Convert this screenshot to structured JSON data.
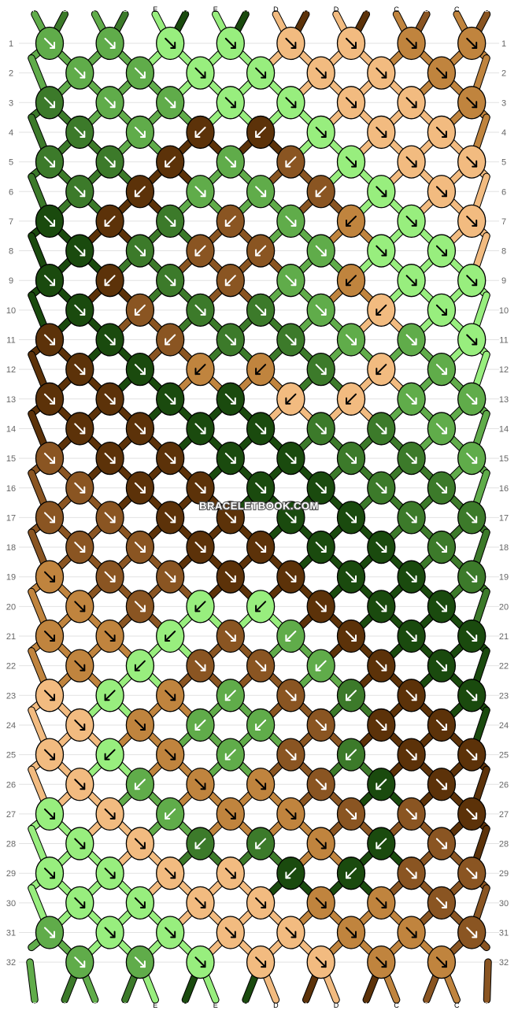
{
  "watermark": "BRACELETBOOK.COM",
  "colors": {
    "E": "#98ee7e",
    "F": "#60ac4a",
    "G": "#3c7a2a",
    "H": "#1a4a0e",
    "D": "#f2bb80",
    "C": "#c0843e",
    "B": "#8a5522",
    "A": "#5c3209"
  },
  "strands_top": [
    "F",
    "G",
    "F",
    "G",
    "E",
    "H",
    "E",
    "H",
    "D",
    "A",
    "D",
    "A",
    "C",
    "B",
    "C",
    "B"
  ],
  "strands_bottom": [
    "F",
    "G",
    "F",
    "G",
    "E",
    "H",
    "E",
    "H",
    "D",
    "A",
    "D",
    "A",
    "C",
    "B",
    "C",
    "B"
  ],
  "row_labels": [
    "1",
    "2",
    "3",
    "4",
    "5",
    "6",
    "7",
    "8",
    "9",
    "10",
    "11",
    "12",
    "13",
    "14",
    "15",
    "16",
    "17",
    "18",
    "19",
    "20",
    "21",
    "22",
    "23",
    "24",
    "25",
    "26",
    "27",
    "28",
    "29",
    "30",
    "31",
    "32"
  ],
  "knots": [
    [
      {
        "c": "F",
        "d": "f"
      },
      {
        "c": "F",
        "d": "f"
      },
      {
        "c": "E",
        "d": "f"
      },
      {
        "c": "E",
        "d": "f"
      },
      {
        "c": "D",
        "d": "f"
      },
      {
        "c": "D",
        "d": "f"
      },
      {
        "c": "C",
        "d": "f"
      },
      {
        "c": "C",
        "d": "f"
      }
    ],
    [
      {
        "c": "F",
        "d": "f"
      },
      {
        "c": "F",
        "d": "f"
      },
      {
        "c": "E",
        "d": "f"
      },
      {
        "c": "E",
        "d": "f"
      },
      {
        "c": "D",
        "d": "f"
      },
      {
        "c": "D",
        "d": "f"
      },
      {
        "c": "C",
        "d": "f"
      }
    ],
    [
      {
        "c": "G",
        "d": "f"
      },
      {
        "c": "F",
        "d": "f"
      },
      {
        "c": "F",
        "d": "f"
      },
      {
        "c": "E",
        "d": "f"
      },
      {
        "c": "E",
        "d": "f"
      },
      {
        "c": "D",
        "d": "f"
      },
      {
        "c": "D",
        "d": "f"
      },
      {
        "c": "C",
        "d": "f"
      }
    ],
    [
      {
        "c": "G",
        "d": "f"
      },
      {
        "c": "F",
        "d": "f"
      },
      {
        "c": "A",
        "d": "b"
      },
      {
        "c": "A",
        "d": "b"
      },
      {
        "c": "E",
        "d": "f"
      },
      {
        "c": "D",
        "d": "f"
      },
      {
        "c": "D",
        "d": "f"
      }
    ],
    [
      {
        "c": "G",
        "d": "f"
      },
      {
        "c": "G",
        "d": "f"
      },
      {
        "c": "A",
        "d": "b"
      },
      {
        "c": "F",
        "d": "f"
      },
      {
        "c": "B",
        "d": "b"
      },
      {
        "c": "E",
        "d": "f"
      },
      {
        "c": "D",
        "d": "f"
      },
      {
        "c": "D",
        "d": "f"
      }
    ],
    [
      {
        "c": "G",
        "d": "f"
      },
      {
        "c": "A",
        "d": "b"
      },
      {
        "c": "F",
        "d": "f"
      },
      {
        "c": "F",
        "d": "f"
      },
      {
        "c": "B",
        "d": "b"
      },
      {
        "c": "E",
        "d": "f"
      },
      {
        "c": "D",
        "d": "f"
      }
    ],
    [
      {
        "c": "H",
        "d": "f"
      },
      {
        "c": "A",
        "d": "b"
      },
      {
        "c": "G",
        "d": "f"
      },
      {
        "c": "B",
        "d": "b"
      },
      {
        "c": "F",
        "d": "f"
      },
      {
        "c": "C",
        "d": "b"
      },
      {
        "c": "E",
        "d": "f"
      },
      {
        "c": "D",
        "d": "f"
      }
    ],
    [
      {
        "c": "H",
        "d": "f"
      },
      {
        "c": "G",
        "d": "f"
      },
      {
        "c": "B",
        "d": "b"
      },
      {
        "c": "B",
        "d": "b"
      },
      {
        "c": "F",
        "d": "f"
      },
      {
        "c": "E",
        "d": "f"
      },
      {
        "c": "E",
        "d": "f"
      }
    ],
    [
      {
        "c": "H",
        "d": "f"
      },
      {
        "c": "A",
        "d": "b"
      },
      {
        "c": "G",
        "d": "f"
      },
      {
        "c": "B",
        "d": "b"
      },
      {
        "c": "F",
        "d": "f"
      },
      {
        "c": "C",
        "d": "b"
      },
      {
        "c": "E",
        "d": "f"
      },
      {
        "c": "E",
        "d": "f"
      }
    ],
    [
      {
        "c": "H",
        "d": "f"
      },
      {
        "c": "B",
        "d": "b"
      },
      {
        "c": "G",
        "d": "f"
      },
      {
        "c": "G",
        "d": "f"
      },
      {
        "c": "F",
        "d": "f"
      },
      {
        "c": "D",
        "d": "b"
      },
      {
        "c": "E",
        "d": "f"
      }
    ],
    [
      {
        "c": "A",
        "d": "f"
      },
      {
        "c": "H",
        "d": "f"
      },
      {
        "c": "B",
        "d": "b"
      },
      {
        "c": "G",
        "d": "f"
      },
      {
        "c": "G",
        "d": "f"
      },
      {
        "c": "F",
        "d": "f"
      },
      {
        "c": "F",
        "d": "f"
      },
      {
        "c": "E",
        "d": "f"
      }
    ],
    [
      {
        "c": "A",
        "d": "f"
      },
      {
        "c": "H",
        "d": "f"
      },
      {
        "c": "C",
        "d": "b"
      },
      {
        "c": "C",
        "d": "b"
      },
      {
        "c": "G",
        "d": "f"
      },
      {
        "c": "D",
        "d": "b"
      },
      {
        "c": "F",
        "d": "f"
      }
    ],
    [
      {
        "c": "A",
        "d": "f"
      },
      {
        "c": "A",
        "d": "f"
      },
      {
        "c": "H",
        "d": "f"
      },
      {
        "c": "H",
        "d": "f"
      },
      {
        "c": "D",
        "d": "b"
      },
      {
        "c": "D",
        "d": "b"
      },
      {
        "c": "F",
        "d": "f"
      },
      {
        "c": "F",
        "d": "f"
      }
    ],
    [
      {
        "c": "A",
        "d": "f"
      },
      {
        "c": "A",
        "d": "f"
      },
      {
        "c": "H",
        "d": "f"
      },
      {
        "c": "H",
        "d": "f"
      },
      {
        "c": "G",
        "d": "f"
      },
      {
        "c": "G",
        "d": "f"
      },
      {
        "c": "F",
        "d": "f"
      }
    ],
    [
      {
        "c": "B",
        "d": "f"
      },
      {
        "c": "A",
        "d": "f"
      },
      {
        "c": "A",
        "d": "f"
      },
      {
        "c": "H",
        "d": "f"
      },
      {
        "c": "H",
        "d": "f"
      },
      {
        "c": "G",
        "d": "f"
      },
      {
        "c": "G",
        "d": "f"
      },
      {
        "c": "F",
        "d": "f"
      }
    ],
    [
      {
        "c": "B",
        "d": "f"
      },
      {
        "c": "A",
        "d": "f"
      },
      {
        "c": "A",
        "d": "f"
      },
      {
        "c": "H",
        "d": "f"
      },
      {
        "c": "H",
        "d": "f"
      },
      {
        "c": "G",
        "d": "f"
      },
      {
        "c": "G",
        "d": "f"
      }
    ],
    [
      {
        "c": "B",
        "d": "f"
      },
      {
        "c": "B",
        "d": "f"
      },
      {
        "c": "A",
        "d": "f"
      },
      {
        "c": "A",
        "d": "f"
      },
      {
        "c": "H",
        "d": "f"
      },
      {
        "c": "H",
        "d": "f"
      },
      {
        "c": "G",
        "d": "f"
      },
      {
        "c": "G",
        "d": "f"
      }
    ],
    [
      {
        "c": "B",
        "d": "f"
      },
      {
        "c": "B",
        "d": "f"
      },
      {
        "c": "A",
        "d": "f"
      },
      {
        "c": "A",
        "d": "f"
      },
      {
        "c": "H",
        "d": "f"
      },
      {
        "c": "H",
        "d": "f"
      },
      {
        "c": "G",
        "d": "f"
      }
    ],
    [
      {
        "c": "C",
        "d": "f"
      },
      {
        "c": "B",
        "d": "f"
      },
      {
        "c": "B",
        "d": "f"
      },
      {
        "c": "A",
        "d": "f"
      },
      {
        "c": "A",
        "d": "f"
      },
      {
        "c": "H",
        "d": "f"
      },
      {
        "c": "H",
        "d": "f"
      },
      {
        "c": "G",
        "d": "f"
      }
    ],
    [
      {
        "c": "C",
        "d": "f"
      },
      {
        "c": "B",
        "d": "f"
      },
      {
        "c": "E",
        "d": "b"
      },
      {
        "c": "E",
        "d": "b"
      },
      {
        "c": "A",
        "d": "f"
      },
      {
        "c": "H",
        "d": "f"
      },
      {
        "c": "H",
        "d": "f"
      }
    ],
    [
      {
        "c": "C",
        "d": "f"
      },
      {
        "c": "C",
        "d": "f"
      },
      {
        "c": "E",
        "d": "b"
      },
      {
        "c": "B",
        "d": "f"
      },
      {
        "c": "F",
        "d": "b"
      },
      {
        "c": "A",
        "d": "f"
      },
      {
        "c": "H",
        "d": "f"
      },
      {
        "c": "H",
        "d": "f"
      }
    ],
    [
      {
        "c": "C",
        "d": "f"
      },
      {
        "c": "E",
        "d": "b"
      },
      {
        "c": "B",
        "d": "f"
      },
      {
        "c": "B",
        "d": "f"
      },
      {
        "c": "F",
        "d": "b"
      },
      {
        "c": "A",
        "d": "f"
      },
      {
        "c": "H",
        "d": "f"
      }
    ],
    [
      {
        "c": "D",
        "d": "f"
      },
      {
        "c": "E",
        "d": "b"
      },
      {
        "c": "C",
        "d": "f"
      },
      {
        "c": "F",
        "d": "b"
      },
      {
        "c": "B",
        "d": "f"
      },
      {
        "c": "G",
        "d": "b"
      },
      {
        "c": "A",
        "d": "f"
      },
      {
        "c": "H",
        "d": "f"
      }
    ],
    [
      {
        "c": "D",
        "d": "f"
      },
      {
        "c": "C",
        "d": "f"
      },
      {
        "c": "F",
        "d": "b"
      },
      {
        "c": "F",
        "d": "b"
      },
      {
        "c": "B",
        "d": "f"
      },
      {
        "c": "A",
        "d": "f"
      },
      {
        "c": "A",
        "d": "f"
      }
    ],
    [
      {
        "c": "D",
        "d": "f"
      },
      {
        "c": "E",
        "d": "b"
      },
      {
        "c": "C",
        "d": "f"
      },
      {
        "c": "F",
        "d": "b"
      },
      {
        "c": "B",
        "d": "f"
      },
      {
        "c": "G",
        "d": "b"
      },
      {
        "c": "A",
        "d": "f"
      },
      {
        "c": "A",
        "d": "f"
      }
    ],
    [
      {
        "c": "D",
        "d": "f"
      },
      {
        "c": "F",
        "d": "b"
      },
      {
        "c": "C",
        "d": "f"
      },
      {
        "c": "C",
        "d": "f"
      },
      {
        "c": "B",
        "d": "f"
      },
      {
        "c": "H",
        "d": "b"
      },
      {
        "c": "A",
        "d": "f"
      }
    ],
    [
      {
        "c": "E",
        "d": "f"
      },
      {
        "c": "D",
        "d": "f"
      },
      {
        "c": "F",
        "d": "b"
      },
      {
        "c": "C",
        "d": "f"
      },
      {
        "c": "C",
        "d": "f"
      },
      {
        "c": "B",
        "d": "f"
      },
      {
        "c": "B",
        "d": "f"
      },
      {
        "c": "A",
        "d": "f"
      }
    ],
    [
      {
        "c": "E",
        "d": "f"
      },
      {
        "c": "D",
        "d": "f"
      },
      {
        "c": "G",
        "d": "b"
      },
      {
        "c": "G",
        "d": "b"
      },
      {
        "c": "C",
        "d": "f"
      },
      {
        "c": "H",
        "d": "b"
      },
      {
        "c": "B",
        "d": "f"
      }
    ],
    [
      {
        "c": "E",
        "d": "f"
      },
      {
        "c": "E",
        "d": "f"
      },
      {
        "c": "D",
        "d": "f"
      },
      {
        "c": "D",
        "d": "f"
      },
      {
        "c": "H",
        "d": "b"
      },
      {
        "c": "H",
        "d": "b"
      },
      {
        "c": "B",
        "d": "f"
      },
      {
        "c": "B",
        "d": "f"
      }
    ],
    [
      {
        "c": "E",
        "d": "f"
      },
      {
        "c": "E",
        "d": "f"
      },
      {
        "c": "D",
        "d": "f"
      },
      {
        "c": "D",
        "d": "f"
      },
      {
        "c": "C",
        "d": "f"
      },
      {
        "c": "C",
        "d": "f"
      },
      {
        "c": "B",
        "d": "f"
      }
    ],
    [
      {
        "c": "F",
        "d": "f"
      },
      {
        "c": "E",
        "d": "f"
      },
      {
        "c": "E",
        "d": "f"
      },
      {
        "c": "D",
        "d": "f"
      },
      {
        "c": "D",
        "d": "f"
      },
      {
        "c": "C",
        "d": "f"
      },
      {
        "c": "C",
        "d": "f"
      },
      {
        "c": "B",
        "d": "f"
      }
    ],
    [
      {
        "c": "F",
        "d": "f"
      },
      {
        "c": "F",
        "d": "f"
      },
      {
        "c": "E",
        "d": "f"
      },
      {
        "c": "D",
        "d": "f"
      },
      {
        "c": "D",
        "d": "f"
      },
      {
        "c": "C",
        "d": "f"
      },
      {
        "c": "C",
        "d": "f"
      }
    ]
  ]
}
